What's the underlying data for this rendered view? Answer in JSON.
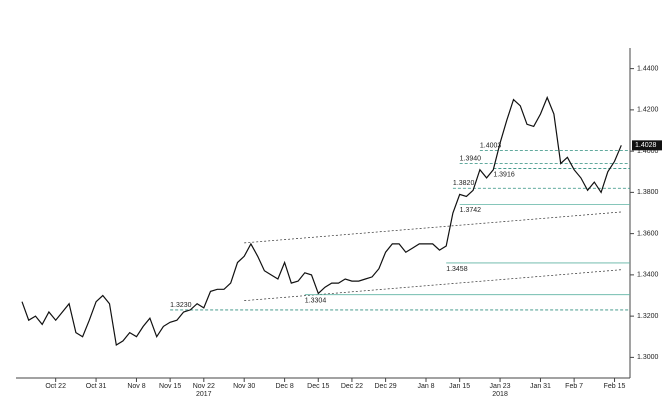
{
  "chart_data": {
    "type": "line",
    "color": "#111111",
    "x": [
      "2017-10-16",
      "2017-10-17",
      "2017-10-18",
      "2017-10-19",
      "2017-10-20",
      "2017-10-23",
      "2017-10-24",
      "2017-10-25",
      "2017-10-26",
      "2017-10-27",
      "2017-10-30",
      "2017-10-31",
      "2017-11-01",
      "2017-11-02",
      "2017-11-03",
      "2017-11-06",
      "2017-11-07",
      "2017-11-08",
      "2017-11-09",
      "2017-11-10",
      "2017-11-13",
      "2017-11-14",
      "2017-11-15",
      "2017-11-16",
      "2017-11-17",
      "2017-11-20",
      "2017-11-21",
      "2017-11-22",
      "2017-11-23",
      "2017-11-24",
      "2017-11-27",
      "2017-11-28",
      "2017-11-29",
      "2017-11-30",
      "2017-12-01",
      "2017-12-04",
      "2017-12-05",
      "2017-12-06",
      "2017-12-07",
      "2017-12-08",
      "2017-12-11",
      "2017-12-12",
      "2017-12-13",
      "2017-12-14",
      "2017-12-15",
      "2017-12-18",
      "2017-12-19",
      "2017-12-20",
      "2017-12-21",
      "2017-12-22",
      "2017-12-25",
      "2017-12-26",
      "2017-12-27",
      "2017-12-28",
      "2017-12-29",
      "2018-01-01",
      "2018-01-02",
      "2018-01-03",
      "2018-01-04",
      "2018-01-05",
      "2018-01-08",
      "2018-01-09",
      "2018-01-10",
      "2018-01-11",
      "2018-01-12",
      "2018-01-15",
      "2018-01-16",
      "2018-01-17",
      "2018-01-18",
      "2018-01-19",
      "2018-01-22",
      "2018-01-23",
      "2018-01-24",
      "2018-01-25",
      "2018-01-26",
      "2018-01-29",
      "2018-01-30",
      "2018-01-31",
      "2018-02-01",
      "2018-02-02",
      "2018-02-05",
      "2018-02-06",
      "2018-02-07",
      "2018-02-08",
      "2018-02-09",
      "2018-02-12",
      "2018-02-13",
      "2018-02-14",
      "2018-02-15",
      "2018-02-16"
    ],
    "values": [
      1.327,
      1.318,
      1.32,
      1.316,
      1.322,
      1.318,
      1.322,
      1.326,
      1.312,
      1.31,
      1.318,
      1.327,
      1.33,
      1.326,
      1.306,
      1.308,
      1.312,
      1.31,
      1.315,
      1.319,
      1.31,
      1.315,
      1.317,
      1.318,
      1.322,
      1.323,
      1.326,
      1.324,
      1.332,
      1.333,
      1.333,
      1.336,
      1.346,
      1.349,
      1.355,
      1.349,
      1.342,
      1.34,
      1.338,
      1.346,
      1.336,
      1.337,
      1.341,
      1.34,
      1.331,
      1.334,
      1.336,
      1.336,
      1.338,
      1.337,
      1.337,
      1.338,
      1.339,
      1.343,
      1.351,
      1.355,
      1.355,
      1.351,
      1.353,
      1.355,
      1.355,
      1.355,
      1.352,
      1.354,
      1.37,
      1.379,
      1.378,
      1.381,
      1.391,
      1.387,
      1.391,
      1.404,
      1.415,
      1.425,
      1.422,
      1.413,
      1.412,
      1.418,
      1.426,
      1.418,
      1.394,
      1.397,
      1.391,
      1.387,
      1.381,
      1.385,
      1.38,
      1.39,
      1.395,
      1.4028
    ],
    "xlim": [
      "2017-10-16",
      "2018-02-17"
    ],
    "xticks": [
      {
        "value": "2017-10-22",
        "label": "Oct 22"
      },
      {
        "value": "2017-10-31",
        "label": "Oct 31"
      },
      {
        "value": "2017-11-08",
        "label": "Nov 8"
      },
      {
        "value": "2017-11-15",
        "label": "Nov 15"
      },
      {
        "value": "2017-11-22",
        "label": "Nov 22"
      },
      {
        "value": "2017-11-30",
        "label": "Nov 30"
      },
      {
        "value": "2017-12-08",
        "label": "Dec 8"
      },
      {
        "value": "2017-12-15",
        "label": "Dec 15"
      },
      {
        "value": "2017-12-22",
        "label": "Dec 22"
      },
      {
        "value": "2017-12-29",
        "label": "Dec 29"
      },
      {
        "value": "2018-01-08",
        "label": "Jan 8"
      },
      {
        "value": "2018-01-15",
        "label": "Jan 15"
      },
      {
        "value": "2018-01-23",
        "label": "Jan 23"
      },
      {
        "value": "2018-01-31",
        "label": "Jan 31"
      },
      {
        "value": "2018-02-07",
        "label": "Feb 7"
      },
      {
        "value": "2018-02-15",
        "label": "Feb 15"
      }
    ],
    "year_labels": [
      {
        "value": "2017-11-22",
        "label": "2017"
      },
      {
        "value": "2018-01-23",
        "label": "2018"
      }
    ],
    "ylim": [
      1.29,
      1.45
    ],
    "yticks": [
      {
        "value": 1.3,
        "label": "1.3000"
      },
      {
        "value": 1.32,
        "label": "1.3200"
      },
      {
        "value": 1.34,
        "label": "1.3400"
      },
      {
        "value": 1.36,
        "label": "1.3600"
      },
      {
        "value": 1.38,
        "label": "1.3800"
      },
      {
        "value": 1.4,
        "label": "1.4000"
      },
      {
        "value": 1.42,
        "label": "1.4200"
      },
      {
        "value": 1.44,
        "label": "1.4400"
      }
    ],
    "levels": [
      {
        "value": 1.323,
        "label": "1.3230",
        "x": "2017-11-15",
        "dashed": true
      },
      {
        "value": 1.3304,
        "label": "1.3304",
        "x": "2017-12-13",
        "dashed": false
      },
      {
        "value": 1.3458,
        "label": "1.3458",
        "x": "2018-01-11",
        "dashed": false
      },
      {
        "value": 1.3742,
        "label": "1.3742",
        "x": "2018-01-15",
        "dashed": false
      },
      {
        "value": 1.382,
        "label": "1.3820",
        "x": "2018-01-12",
        "dashed": true
      },
      {
        "value": 1.3916,
        "label": "1.3916",
        "x": "2018-01-22",
        "dashed": true
      },
      {
        "value": 1.394,
        "label": "1.3940",
        "x": "2018-01-15",
        "dashed": true
      },
      {
        "value": 1.4003,
        "label": "1.4003",
        "x": "2018-01-18",
        "dashed": true
      }
    ],
    "trendlines": [
      {
        "x": [
          "2017-11-30",
          "2018-02-16"
        ],
        "values": [
          1.3555,
          1.3705
        ]
      },
      {
        "x": [
          "2017-11-30",
          "2018-02-16"
        ],
        "values": [
          1.3275,
          1.3425
        ]
      }
    ],
    "last_value": {
      "value": 1.4028,
      "label": "1.4028"
    }
  }
}
